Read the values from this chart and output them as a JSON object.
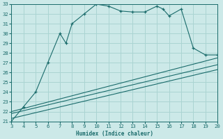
{
  "xlabel": "Humidex (Indice chaleur)",
  "xlim": [
    3,
    20
  ],
  "ylim": [
    21,
    33
  ],
  "xticks": [
    3,
    4,
    5,
    6,
    7,
    8,
    9,
    10,
    11,
    12,
    13,
    14,
    15,
    16,
    17,
    18,
    19,
    20
  ],
  "yticks": [
    21,
    22,
    23,
    24,
    25,
    26,
    27,
    28,
    29,
    30,
    31,
    32,
    33
  ],
  "bg_color": "#cce9e8",
  "grid_color": "#aad4d2",
  "line_color": "#1a6b6b",
  "main_x": [
    3,
    4,
    5,
    6,
    7,
    7.5,
    8,
    9,
    10,
    11,
    12,
    13,
    14,
    15,
    15.5,
    16,
    17,
    18,
    19,
    20
  ],
  "main_y": [
    21,
    22.5,
    24,
    27,
    30,
    29,
    31,
    32,
    33,
    32.8,
    32.3,
    32.2,
    32.2,
    32.8,
    32.5,
    31.8,
    32.5,
    28.5,
    27.8,
    27.8
  ],
  "line1_x": [
    3,
    20
  ],
  "line1_y": [
    22.0,
    27.5
  ],
  "line2_x": [
    3,
    20
  ],
  "line2_y": [
    21.8,
    26.8
  ],
  "line3_x": [
    3,
    20
  ],
  "line3_y": [
    21.3,
    26.3
  ]
}
